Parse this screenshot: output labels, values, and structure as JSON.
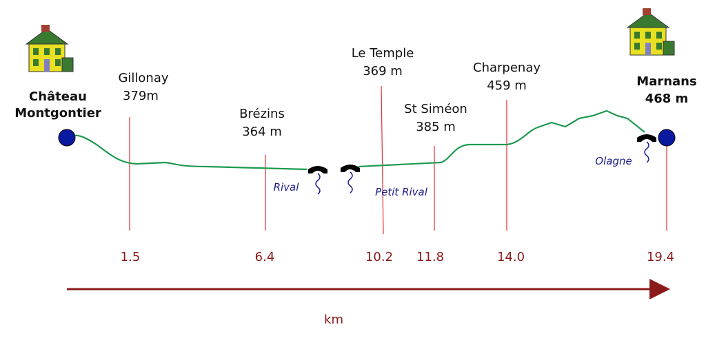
{
  "start": {
    "name_lines": [
      "Château",
      "Montgontier"
    ]
  },
  "end": {
    "name": "Marnans",
    "elevation": "468 m",
    "km": "19.4"
  },
  "places": [
    {
      "name": "Gillonay",
      "elevation": "379m",
      "km": "1.5"
    },
    {
      "name": "Brézins",
      "elevation": "364 m",
      "km": "6.4"
    },
    {
      "name": "Le Temple",
      "elevation": "369 m",
      "km": "10.2"
    },
    {
      "name": "St Siméon",
      "elevation": "385 m",
      "km": "11.8"
    },
    {
      "name": "Charpenay",
      "elevation": "459 m",
      "km": "14.0"
    }
  ],
  "rivers": [
    "Rival",
    "Petit Rival",
    "Olagne"
  ],
  "axis_label": "km"
}
